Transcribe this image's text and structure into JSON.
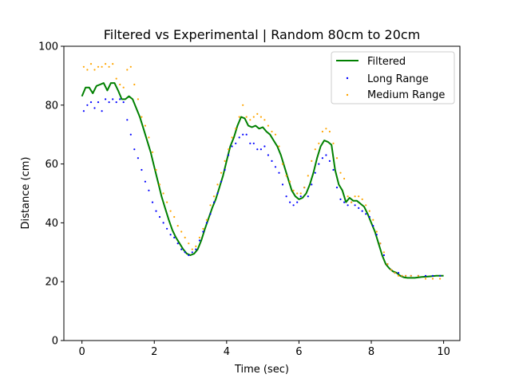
{
  "chart_data": {
    "type": "line",
    "title": "Filtered vs Experimental | Random 80cm to 20cm",
    "xlabel": "Time (sec)",
    "ylabel": "Distance (cm)",
    "xlim": [
      -0.5,
      10.45
    ],
    "ylim": [
      0,
      100
    ],
    "xticks": [
      0,
      2,
      4,
      6,
      8,
      10
    ],
    "yticks": [
      0,
      20,
      40,
      60,
      80,
      100
    ],
    "grid": false,
    "legend_position": "top-right",
    "series": [
      {
        "name": "Filtered",
        "kind": "line",
        "color": "#008000",
        "x": [
          0,
          0.1,
          0.2,
          0.3,
          0.4,
          0.5,
          0.6,
          0.7,
          0.8,
          0.9,
          1.0,
          1.1,
          1.2,
          1.3,
          1.4,
          1.5,
          1.6,
          1.7,
          1.8,
          1.9,
          2.0,
          2.1,
          2.2,
          2.3,
          2.4,
          2.5,
          2.6,
          2.7,
          2.8,
          2.9,
          3.0,
          3.1,
          3.2,
          3.3,
          3.4,
          3.5,
          3.6,
          3.7,
          3.8,
          3.9,
          4.0,
          4.1,
          4.2,
          4.3,
          4.4,
          4.5,
          4.6,
          4.7,
          4.8,
          4.9,
          5.0,
          5.1,
          5.2,
          5.3,
          5.4,
          5.5,
          5.6,
          5.7,
          5.8,
          5.9,
          6.0,
          6.1,
          6.2,
          6.3,
          6.4,
          6.5,
          6.6,
          6.7,
          6.8,
          6.9,
          7.0,
          7.1,
          7.2,
          7.3,
          7.4,
          7.5,
          7.6,
          7.7,
          7.8,
          7.9,
          8.0,
          8.1,
          8.2,
          8.3,
          8.4,
          8.5,
          8.6,
          8.7,
          8.8,
          8.9,
          9.0,
          9.2,
          9.4,
          9.6,
          9.8,
          10.0
        ],
        "y": [
          83,
          86,
          86,
          84,
          86.5,
          87,
          87.5,
          85,
          87.5,
          87.5,
          85,
          82,
          82,
          83,
          82,
          79,
          76,
          72,
          68,
          64,
          59,
          54,
          49,
          45,
          41,
          37.5,
          35,
          33,
          31,
          29.5,
          29,
          29.5,
          31,
          34,
          38,
          41.5,
          45,
          48,
          52,
          56,
          61,
          66,
          69,
          73,
          76,
          75.5,
          73,
          72.5,
          73,
          72,
          72.5,
          71,
          70,
          68,
          66,
          63,
          59,
          55,
          51,
          49,
          48,
          48.5,
          50,
          53,
          57,
          62,
          66,
          68,
          67.5,
          66.5,
          58,
          53,
          51,
          47,
          48.5,
          47.5,
          47.5,
          46.5,
          45.5,
          43,
          40,
          37,
          33,
          29,
          26,
          24.5,
          23.5,
          23,
          22,
          21.5,
          21.3,
          21.3,
          21.6,
          21.8,
          22,
          22
        ]
      },
      {
        "name": "Long Range",
        "kind": "scatter",
        "color": "#0000ff",
        "x": [
          0.05,
          0.15,
          0.25,
          0.35,
          0.45,
          0.55,
          0.65,
          0.75,
          0.85,
          0.95,
          1.05,
          1.15,
          1.25,
          1.35,
          1.45,
          1.55,
          1.65,
          1.75,
          1.85,
          1.95,
          2.05,
          2.15,
          2.25,
          2.35,
          2.45,
          2.55,
          2.65,
          2.75,
          2.85,
          2.95,
          3.05,
          3.15,
          3.25,
          3.35,
          3.45,
          3.55,
          3.65,
          3.75,
          3.85,
          3.95,
          4.05,
          4.15,
          4.25,
          4.35,
          4.45,
          4.55,
          4.65,
          4.75,
          4.85,
          4.95,
          5.05,
          5.15,
          5.25,
          5.35,
          5.45,
          5.55,
          5.65,
          5.75,
          5.85,
          5.95,
          6.05,
          6.15,
          6.25,
          6.35,
          6.45,
          6.55,
          6.65,
          6.75,
          6.85,
          6.95,
          7.05,
          7.15,
          7.25,
          7.35,
          7.45,
          7.55,
          7.65,
          7.75,
          7.85,
          7.95,
          8.05,
          8.15,
          8.25,
          8.35,
          8.45,
          8.55,
          8.65,
          8.75,
          8.85,
          8.95,
          9.1,
          9.3,
          9.5,
          9.7,
          9.9
        ],
        "y": [
          78,
          80,
          81,
          79,
          81,
          78,
          82,
          81,
          82,
          81,
          82,
          81,
          75,
          70,
          65,
          62,
          58,
          54,
          51,
          47,
          44,
          42,
          40,
          38,
          36,
          35,
          33,
          31,
          30,
          29,
          30,
          31,
          34,
          37,
          40,
          43,
          47,
          50,
          54,
          58,
          63,
          66,
          67,
          69,
          70,
          70,
          67,
          67,
          65,
          65,
          66,
          63,
          61,
          59,
          57,
          53,
          49,
          47,
          46,
          47,
          49,
          52,
          49,
          53,
          57,
          60,
          62,
          63,
          61,
          58,
          52,
          48,
          47,
          46,
          47,
          46,
          45,
          44,
          43,
          42,
          39,
          36,
          33,
          29,
          26,
          24,
          23,
          23,
          22,
          22,
          22,
          22,
          22,
          22,
          22
        ]
      },
      {
        "name": "Medium Range",
        "kind": "scatter",
        "color": "#ffa500",
        "x": [
          0.05,
          0.15,
          0.25,
          0.35,
          0.45,
          0.55,
          0.65,
          0.75,
          0.85,
          0.95,
          1.05,
          1.15,
          1.25,
          1.35,
          1.45,
          1.55,
          1.65,
          1.75,
          1.85,
          1.95,
          2.05,
          2.15,
          2.25,
          2.35,
          2.45,
          2.55,
          2.65,
          2.75,
          2.85,
          2.95,
          3.05,
          3.15,
          3.25,
          3.35,
          3.45,
          3.55,
          3.65,
          3.75,
          3.85,
          3.95,
          4.05,
          4.15,
          4.25,
          4.35,
          4.45,
          4.55,
          4.65,
          4.75,
          4.85,
          4.95,
          5.05,
          5.15,
          5.25,
          5.35,
          5.45,
          5.55,
          5.65,
          5.75,
          5.85,
          5.95,
          6.05,
          6.15,
          6.25,
          6.35,
          6.45,
          6.55,
          6.65,
          6.75,
          6.85,
          6.95,
          7.05,
          7.15,
          7.25,
          7.35,
          7.45,
          7.55,
          7.65,
          7.75,
          7.85,
          7.95,
          8.05,
          8.15,
          8.25,
          8.35,
          8.45,
          8.55,
          8.65,
          8.75,
          8.85,
          8.95,
          9.1,
          9.3,
          9.5,
          9.7,
          9.9
        ],
        "y": [
          93,
          92,
          94,
          92,
          93,
          93,
          94,
          93,
          94,
          89,
          87,
          86,
          92,
          93,
          87,
          82,
          76,
          73,
          69,
          64,
          58,
          53,
          50,
          47,
          44,
          42,
          39,
          37,
          35,
          33,
          31,
          32,
          35,
          38,
          41,
          46,
          49,
          53,
          57,
          61,
          65,
          69,
          72,
          76,
          80,
          76,
          75,
          76,
          77,
          76,
          75,
          73,
          71,
          70,
          66,
          60,
          56,
          54,
          51,
          50,
          50,
          52,
          56,
          61,
          65,
          67,
          71,
          72,
          71,
          67,
          62,
          57,
          55,
          49,
          47,
          49,
          49,
          48,
          46,
          44,
          41,
          37,
          33,
          30,
          26,
          24,
          23,
          22,
          22,
          22,
          22,
          22,
          21,
          21,
          21
        ]
      }
    ]
  }
}
